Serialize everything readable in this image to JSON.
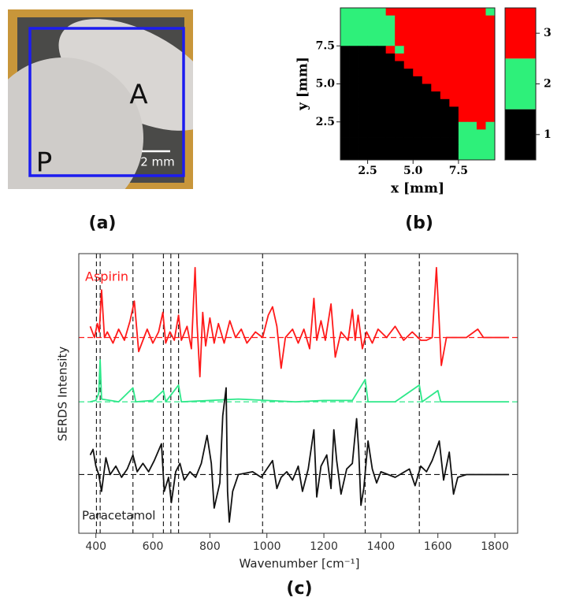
{
  "panels": {
    "a": "(a)",
    "b": "(b)",
    "c": "(c)"
  },
  "photo": {
    "tablet_a": "A",
    "tablet_p": "P",
    "scale_bar": "2 mm"
  },
  "chart_data": [
    {
      "type": "heatmap",
      "xlabel": "x [mm]",
      "ylabel": "y [mm]",
      "xlim": [
        1,
        9.5
      ],
      "ylim": [
        0,
        10
      ],
      "xticks": [
        2.5,
        {
          "value": 5,
          "label": "5.0"
        },
        7.5
      ],
      "yticks": [
        2.5,
        {
          "value": 5,
          "label": "5.0"
        },
        7.5
      ],
      "levels": [
        1,
        2,
        3
      ],
      "palette": [
        "#000000",
        "#2ef07a",
        "#ff0000"
      ],
      "z": [
        [
          2,
          2,
          2,
          2,
          2,
          3,
          3,
          3,
          3,
          3,
          3,
          3,
          3,
          3,
          3,
          3,
          2
        ],
        [
          2,
          2,
          2,
          2,
          2,
          2,
          3,
          3,
          3,
          3,
          3,
          3,
          3,
          3,
          3,
          3,
          3
        ],
        [
          2,
          2,
          2,
          2,
          2,
          2,
          3,
          3,
          3,
          3,
          3,
          3,
          3,
          3,
          3,
          3,
          3
        ],
        [
          2,
          2,
          2,
          2,
          2,
          2,
          3,
          3,
          3,
          3,
          3,
          3,
          3,
          3,
          3,
          3,
          3
        ],
        [
          2,
          2,
          2,
          2,
          2,
          2,
          3,
          3,
          3,
          3,
          3,
          3,
          3,
          3,
          3,
          3,
          3
        ],
        [
          1,
          1,
          1,
          1,
          1,
          3,
          2,
          3,
          3,
          3,
          3,
          3,
          3,
          3,
          3,
          3,
          3
        ],
        [
          1,
          1,
          1,
          1,
          1,
          1,
          3,
          3,
          3,
          3,
          3,
          3,
          3,
          3,
          3,
          3,
          3
        ],
        [
          1,
          1,
          1,
          1,
          1,
          1,
          1,
          3,
          3,
          3,
          3,
          3,
          3,
          3,
          3,
          3,
          3
        ],
        [
          1,
          1,
          1,
          1,
          1,
          1,
          1,
          1,
          3,
          3,
          3,
          3,
          3,
          3,
          3,
          3,
          3
        ],
        [
          1,
          1,
          1,
          1,
          1,
          1,
          1,
          1,
          1,
          3,
          3,
          3,
          3,
          3,
          3,
          3,
          3
        ],
        [
          1,
          1,
          1,
          1,
          1,
          1,
          1,
          1,
          1,
          1,
          3,
          3,
          3,
          3,
          3,
          3,
          3
        ],
        [
          1,
          1,
          1,
          1,
          1,
          1,
          1,
          1,
          1,
          1,
          1,
          3,
          3,
          3,
          3,
          3,
          3
        ],
        [
          1,
          1,
          1,
          1,
          1,
          1,
          1,
          1,
          1,
          1,
          1,
          1,
          3,
          3,
          3,
          3,
          3
        ],
        [
          1,
          1,
          1,
          1,
          1,
          1,
          1,
          1,
          1,
          1,
          1,
          1,
          1,
          3,
          3,
          3,
          3
        ],
        [
          1,
          1,
          1,
          1,
          1,
          1,
          1,
          1,
          1,
          1,
          1,
          1,
          1,
          3,
          3,
          3,
          3
        ],
        [
          1,
          1,
          1,
          1,
          1,
          1,
          1,
          1,
          1,
          1,
          1,
          1,
          1,
          2,
          2,
          3,
          2
        ],
        [
          1,
          1,
          1,
          1,
          1,
          1,
          1,
          1,
          1,
          1,
          1,
          1,
          1,
          2,
          2,
          2,
          2
        ],
        [
          1,
          1,
          1,
          1,
          1,
          1,
          1,
          1,
          1,
          1,
          1,
          1,
          1,
          2,
          2,
          2,
          2
        ],
        [
          1,
          1,
          1,
          1,
          1,
          1,
          1,
          1,
          1,
          1,
          1,
          1,
          1,
          2,
          2,
          2,
          2
        ],
        [
          1,
          1,
          1,
          1,
          1,
          1,
          1,
          1,
          1,
          1,
          1,
          1,
          1,
          2,
          2,
          2,
          2
        ]
      ]
    },
    {
      "type": "line",
      "xlabel": "Wavenumber [cm⁻¹]",
      "ylabel": "SERDS Intensity",
      "xlim": [
        340,
        1880
      ],
      "ylim": [
        0,
        10
      ],
      "xticks": [
        400,
        600,
        800,
        1000,
        1200,
        1400,
        1600,
        1800
      ],
      "vlines": [
        402,
        415,
        530,
        637,
        663,
        690,
        985,
        1345,
        1535
      ],
      "series": [
        {
          "name": "Aspirin",
          "color": "#ff1a1a",
          "baseline": 7.0,
          "x": [
            380,
            395,
            405,
            412,
            420,
            430,
            440,
            460,
            480,
            500,
            520,
            535,
            550,
            565,
            580,
            600,
            620,
            635,
            645,
            660,
            675,
            690,
            700,
            720,
            735,
            748,
            755,
            765,
            775,
            785,
            800,
            815,
            830,
            850,
            870,
            890,
            910,
            930,
            960,
            985,
            1005,
            1020,
            1035,
            1050,
            1065,
            1090,
            1110,
            1130,
            1150,
            1165,
            1175,
            1190,
            1205,
            1225,
            1240,
            1260,
            1285,
            1300,
            1310,
            1320,
            1335,
            1350,
            1370,
            1390,
            1420,
            1450,
            1480,
            1510,
            1540,
            1560,
            1580,
            1595,
            1605,
            1612,
            1630,
            1660,
            1700,
            1740,
            1760,
            1800,
            1850
          ],
          "values": [
            7.4,
            7.0,
            7.5,
            7.2,
            8.7,
            7.0,
            7.2,
            6.8,
            7.3,
            6.9,
            7.6,
            8.3,
            6.5,
            6.9,
            7.3,
            6.8,
            7.2,
            7.9,
            6.8,
            7.2,
            6.9,
            7.8,
            6.9,
            7.4,
            6.6,
            9.5,
            7.5,
            5.6,
            7.9,
            6.7,
            7.7,
            6.8,
            7.5,
            6.8,
            7.6,
            7.0,
            7.3,
            6.8,
            7.2,
            7.0,
            7.8,
            8.1,
            7.4,
            5.9,
            7.0,
            7.3,
            6.8,
            7.3,
            6.6,
            8.4,
            6.9,
            7.6,
            6.9,
            8.2,
            6.3,
            7.2,
            6.9,
            8.0,
            6.9,
            7.8,
            6.6,
            7.2,
            6.8,
            7.3,
            7.0,
            7.4,
            6.9,
            7.2,
            6.9,
            6.9,
            7.0,
            9.5,
            7.5,
            6.0,
            7.0,
            7.0,
            7.0,
            7.3,
            7.0,
            7.0,
            7.0
          ]
        },
        {
          "color": "#2ee88a",
          "baseline": 4.7,
          "x": [
            380,
            400,
            410,
            415,
            420,
            450,
            480,
            530,
            540,
            600,
            637,
            645,
            690,
            700,
            800,
            900,
            1000,
            1100,
            1200,
            1300,
            1345,
            1355,
            1450,
            1535,
            1545,
            1600,
            1610,
            1700,
            1850
          ],
          "values": [
            4.7,
            4.75,
            5.0,
            6.2,
            4.8,
            4.75,
            4.7,
            5.2,
            4.7,
            4.75,
            5.1,
            4.7,
            5.3,
            4.7,
            4.75,
            4.8,
            4.75,
            4.7,
            4.75,
            4.75,
            5.5,
            4.7,
            4.7,
            5.3,
            4.7,
            5.1,
            4.7,
            4.7,
            4.7
          ]
        },
        {
          "name": "Paracetamol",
          "color": "#111111",
          "baseline": 2.1,
          "x": [
            380,
            390,
            400,
            410,
            420,
            435,
            450,
            470,
            490,
            510,
            530,
            545,
            565,
            585,
            605,
            630,
            640,
            655,
            665,
            680,
            695,
            710,
            730,
            750,
            770,
            790,
            805,
            815,
            835,
            845,
            857,
            862,
            868,
            880,
            900,
            950,
            980,
            1000,
            1020,
            1035,
            1050,
            1070,
            1090,
            1110,
            1125,
            1145,
            1165,
            1175,
            1190,
            1210,
            1225,
            1235,
            1245,
            1260,
            1280,
            1300,
            1315,
            1322,
            1330,
            1340,
            1355,
            1370,
            1385,
            1400,
            1450,
            1500,
            1520,
            1540,
            1560,
            1580,
            1605,
            1620,
            1640,
            1655,
            1670,
            1700,
            1850
          ],
          "values": [
            2.8,
            3.0,
            2.4,
            2.1,
            1.5,
            2.7,
            2.1,
            2.4,
            2.0,
            2.3,
            2.8,
            2.2,
            2.5,
            2.2,
            2.6,
            3.2,
            1.5,
            2.0,
            1.1,
            2.2,
            2.5,
            1.9,
            2.2,
            2.0,
            2.5,
            3.5,
            2.5,
            0.9,
            1.8,
            4.2,
            5.2,
            1.5,
            0.4,
            1.5,
            2.1,
            2.2,
            2.0,
            2.3,
            2.6,
            1.6,
            2.0,
            2.2,
            1.9,
            2.4,
            1.5,
            2.3,
            3.7,
            1.3,
            2.4,
            2.8,
            1.6,
            3.7,
            2.6,
            1.4,
            2.3,
            2.5,
            4.1,
            3.0,
            1.0,
            1.6,
            3.3,
            2.3,
            1.8,
            2.2,
            2.0,
            2.3,
            1.7,
            2.4,
            2.2,
            2.6,
            3.3,
            1.9,
            2.9,
            1.4,
            2.0,
            2.1,
            2.1
          ]
        }
      ]
    }
  ]
}
